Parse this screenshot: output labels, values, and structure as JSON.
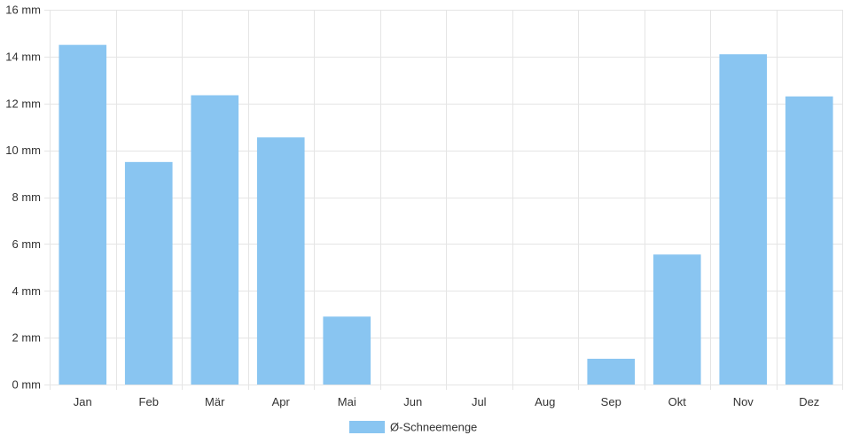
{
  "chart_data": {
    "type": "bar",
    "categories": [
      "Jan",
      "Feb",
      "Mär",
      "Apr",
      "Mai",
      "Jun",
      "Jul",
      "Aug",
      "Sep",
      "Okt",
      "Nov",
      "Dez"
    ],
    "series": [
      {
        "name": "Ø-Schneemenge",
        "values": [
          14.5,
          9.5,
          12.35,
          10.55,
          2.9,
          0,
          0,
          0,
          1.1,
          5.55,
          14.1,
          12.3
        ],
        "color": "#89c5f1"
      }
    ],
    "y_unit": "mm",
    "ylim": [
      0,
      16
    ],
    "y_ticks": [
      0,
      2,
      4,
      6,
      8,
      10,
      12,
      14,
      16
    ],
    "y_tick_labels": [
      "0 mm",
      "2 mm",
      "4 mm",
      "6 mm",
      "8 mm",
      "10 mm",
      "12 mm",
      "14 mm",
      "16 mm"
    ],
    "grid": true,
    "legend_position": "bottom"
  }
}
